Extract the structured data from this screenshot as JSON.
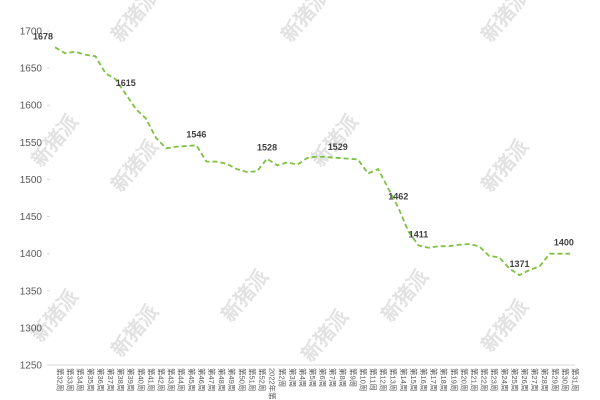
{
  "chart_data": {
    "type": "line",
    "watermark": "新猪派",
    "categories": [
      "第32周",
      "第33周",
      "第34周",
      "第35周",
      "第36周",
      "第37周",
      "第38周",
      "第39周",
      "第40周",
      "第41周",
      "第42周",
      "第43周",
      "第44周",
      "第45周",
      "第46周",
      "第47周",
      "第48周",
      "第49周",
      "第50周",
      "第51周",
      "第52周",
      "2022年第1周",
      "第2周",
      "第3周",
      "第4周",
      "第5周",
      "第6周",
      "第7周",
      "第8周",
      "第9周",
      "第10周",
      "第11周",
      "第12周",
      "第13周",
      "第14周",
      "第15周",
      "第16周",
      "第17周",
      "第18周",
      "第19周",
      "第20周",
      "第21周",
      "第22周",
      "第23周",
      "第24周",
      "第25周",
      "第26周",
      "第27周",
      "第28周",
      "第29周",
      "第30周",
      "第31周"
    ],
    "series": [
      {
        "color": "#7dc242",
        "values": [
          1678,
          1670,
          1672,
          1668,
          1666,
          1643,
          1635,
          1615,
          1595,
          1582,
          1556,
          1542,
          1544,
          1545,
          1546,
          1524,
          1524,
          1521,
          1514,
          1510,
          1511,
          1528,
          1519,
          1523,
          1520,
          1529,
          1531,
          1530,
          1529,
          1528,
          1527,
          1508,
          1514,
          1488,
          1462,
          1430,
          1411,
          1408,
          1410,
          1410,
          1412,
          1413,
          1410,
          1397,
          1395,
          1380,
          1371,
          1378,
          1383,
          1400,
          1400,
          1400
        ],
        "value_labels": [
          "1678",
          null,
          null,
          null,
          null,
          null,
          null,
          "1615",
          null,
          null,
          null,
          null,
          null,
          null,
          "1546",
          null,
          null,
          null,
          null,
          null,
          null,
          "1528",
          null,
          null,
          null,
          null,
          null,
          null,
          "1529",
          null,
          null,
          null,
          null,
          null,
          "1462",
          null,
          "1411",
          null,
          null,
          null,
          null,
          null,
          null,
          null,
          null,
          null,
          "1371",
          null,
          null,
          null,
          null,
          "1400"
        ]
      }
    ],
    "ylim": [
      1250,
      1700
    ],
    "yticks": [
      1250,
      1300,
      1350,
      1400,
      1450,
      1500,
      1550,
      1600,
      1650,
      1700
    ]
  }
}
